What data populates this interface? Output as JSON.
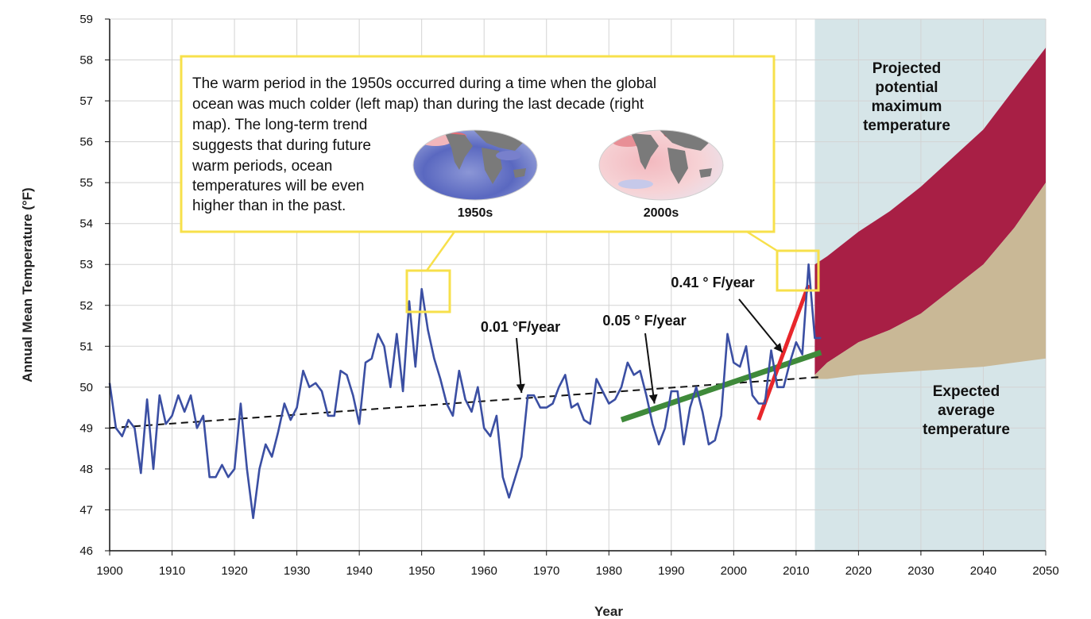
{
  "chart_data": {
    "type": "line",
    "xlabel": "Year",
    "ylabel": "Annual Mean Temperature (°F)",
    "xlim": [
      1900,
      2050
    ],
    "ylim": [
      46,
      59
    ],
    "x_ticks": [
      1900,
      1910,
      1920,
      1930,
      1940,
      1950,
      1960,
      1970,
      1980,
      1990,
      2000,
      2010,
      2020,
      2030,
      2040,
      2050
    ],
    "y_ticks": [
      46,
      47,
      48,
      49,
      50,
      51,
      52,
      53,
      54,
      55,
      56,
      57,
      58,
      59
    ],
    "grid": true,
    "colors": {
      "observed": "#3b4fa3",
      "trend_long": "#111111",
      "trend_mid": "#3f8a3a",
      "trend_recent": "#e8262b",
      "projection_zone": "#d6e5e8",
      "max_band": "#a81f45",
      "avg_band": "#c9b896",
      "callout_box": "#f7e04b",
      "grid": "#d3d3d3"
    },
    "series": [
      {
        "x": [
          1900,
          1901,
          1902,
          1903,
          1904,
          1905,
          1906,
          1907,
          1908,
          1909,
          1910,
          1911,
          1912,
          1913,
          1914,
          1915,
          1916,
          1917,
          1918,
          1919,
          1920,
          1921,
          1922,
          1923,
          1924,
          1925,
          1926,
          1927,
          1928,
          1929,
          1930,
          1931,
          1932,
          1933,
          1934,
          1935,
          1936,
          1937,
          1938,
          1939,
          1940,
          1941,
          1942,
          1943,
          1944,
          1945,
          1946,
          1947,
          1948,
          1949,
          1950,
          1951,
          1952,
          1953,
          1954,
          1955,
          1956,
          1957,
          1958,
          1959,
          1960,
          1961,
          1962,
          1963,
          1964,
          1965,
          1966,
          1967,
          1968,
          1969,
          1970,
          1971,
          1972,
          1973,
          1974,
          1975,
          1976,
          1977,
          1978,
          1979,
          1980,
          1981,
          1982,
          1983,
          1984,
          1985,
          1986,
          1987,
          1988,
          1989,
          1990,
          1991,
          1992,
          1993,
          1994,
          1995,
          1996,
          1997,
          1998,
          1999,
          2000,
          2001,
          2002,
          2003,
          2004,
          2005,
          2006,
          2007,
          2008,
          2009,
          2010,
          2011,
          2012,
          2013,
          2014
        ],
        "values": [
          50.1,
          49.0,
          48.8,
          49.2,
          49.0,
          47.9,
          49.7,
          48.0,
          49.8,
          49.1,
          49.3,
          49.8,
          49.4,
          49.8,
          49.0,
          49.3,
          47.8,
          47.8,
          48.1,
          47.8,
          48.0,
          49.6,
          48.0,
          46.8,
          48.0,
          48.6,
          48.3,
          48.9,
          49.6,
          49.2,
          49.5,
          50.4,
          50.0,
          50.1,
          49.9,
          49.3,
          49.3,
          50.4,
          50.3,
          49.8,
          49.1,
          50.6,
          50.7,
          51.3,
          51.0,
          50.0,
          51.3,
          49.9,
          52.1,
          50.5,
          52.4,
          51.4,
          50.7,
          50.2,
          49.6,
          49.3,
          50.4,
          49.7,
          49.4,
          50.0,
          49.0,
          48.8,
          49.3,
          47.8,
          47.3,
          47.8,
          48.3,
          49.8,
          49.8,
          49.5,
          49.5,
          49.6,
          50.0,
          50.3,
          49.5,
          49.6,
          49.2,
          49.1,
          50.2,
          49.9,
          49.6,
          49.7,
          50.0,
          50.6,
          50.3,
          50.4,
          49.8,
          49.1,
          48.6,
          49.0,
          49.9,
          49.9,
          48.6,
          49.5,
          50.0,
          49.4,
          48.6,
          48.7,
          49.3,
          51.3,
          50.6,
          50.5,
          51.0,
          49.8,
          49.6,
          49.6,
          50.9,
          50.0,
          50.0,
          50.6,
          51.1,
          50.8,
          53.0,
          51.2,
          51.2
        ]
      }
    ],
    "trend_lines": [
      {
        "label": "0.01 °F/year",
        "x": [
          1900,
          2014
        ],
        "y": [
          49.0,
          50.25
        ]
      },
      {
        "label": "0.05 ° F/year",
        "x": [
          1982,
          2014
        ],
        "y": [
          49.2,
          50.85
        ]
      },
      {
        "label": "0.41 ° F/year",
        "x": [
          2004,
          2012
        ],
        "y": [
          49.2,
          52.5
        ]
      }
    ],
    "projection": {
      "start_year": 2013,
      "years": [
        2013,
        2015,
        2020,
        2025,
        2030,
        2035,
        2040,
        2045,
        2050
      ],
      "max_upper": [
        53.0,
        53.2,
        53.8,
        54.3,
        54.9,
        55.6,
        56.3,
        57.3,
        58.3
      ],
      "avg_upper": [
        50.3,
        50.6,
        51.1,
        51.4,
        51.8,
        52.4,
        53.0,
        53.9,
        55.0
      ],
      "avg_lower": [
        50.2,
        50.2,
        50.3,
        50.35,
        50.4,
        50.45,
        50.5,
        50.6,
        50.7
      ],
      "max_label_lines": [
        "Projected",
        "potential",
        "maximum",
        "temperature"
      ],
      "avg_label_lines": [
        "Expected",
        "average",
        "temperature"
      ]
    },
    "callout": {
      "lines": [
        "The warm period in the 1950s occurred during a time when the global",
        "ocean was much colder (left map) than during the last decade (right",
        "map). The long-term trend",
        "suggests that during future",
        "warm periods, ocean",
        "temperatures will be even",
        "higher than in the past."
      ],
      "maps": [
        {
          "label": "1950s",
          "icon": "globe-map-cold-ocean"
        },
        {
          "label": "2000s",
          "icon": "globe-map-warm-ocean"
        }
      ]
    }
  }
}
